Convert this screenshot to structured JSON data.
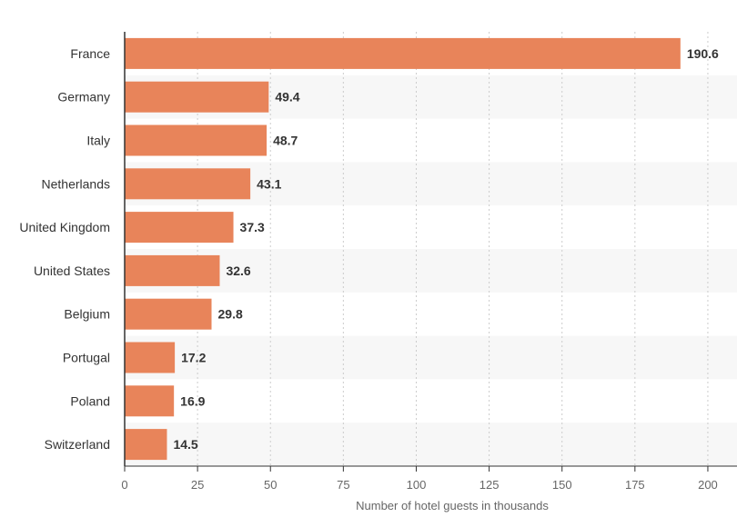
{
  "chart_data": {
    "type": "bar",
    "orientation": "horizontal",
    "categories": [
      "France",
      "Germany",
      "Italy",
      "Netherlands",
      "United Kingdom",
      "United States",
      "Belgium",
      "Portugal",
      "Poland",
      "Switzerland"
    ],
    "values": [
      190.6,
      49.4,
      48.7,
      43.1,
      37.3,
      32.6,
      29.8,
      17.2,
      16.9,
      14.5
    ],
    "value_labels": [
      "190.6",
      "49.4",
      "48.7",
      "43.1",
      "37.3",
      "32.6",
      "29.8",
      "17.2",
      "16.9",
      "14.5"
    ],
    "xlabel": "Number of hotel guests in thousands",
    "xlim": [
      0,
      210
    ],
    "ticks": [
      0,
      25,
      50,
      75,
      100,
      125,
      150,
      175,
      200
    ],
    "tick_labels": [
      "0",
      "25",
      "50",
      "75",
      "100",
      "125",
      "150",
      "175",
      "200"
    ],
    "grid": "vertical dotted",
    "colors": {
      "bar": "#e8845a",
      "band": "#f7f7f7",
      "grid": "#cccccc",
      "axis": "#333333"
    }
  }
}
